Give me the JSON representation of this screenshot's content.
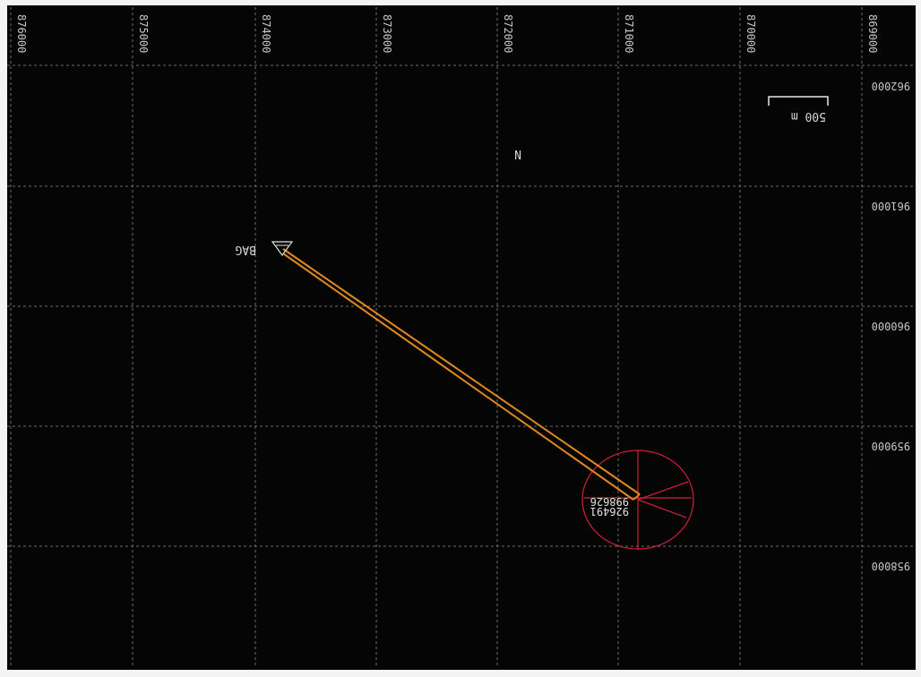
{
  "map": {
    "background": "#050505",
    "grid_color": "#6a6a6a",
    "trajectory_color": "#e08a1e",
    "target_color": "#d0203a",
    "easting_ticks": [
      "876000",
      "875000",
      "874000",
      "873000",
      "872000",
      "871000",
      "870000",
      "869000"
    ],
    "northing_ticks": [
      "962000",
      "961000",
      "960000",
      "959000",
      "958000"
    ],
    "scale_bar_label": "500 m",
    "well_label": "BAG",
    "north_marker": "N",
    "target_label_top": "998626",
    "target_label_bottom": "926491"
  }
}
